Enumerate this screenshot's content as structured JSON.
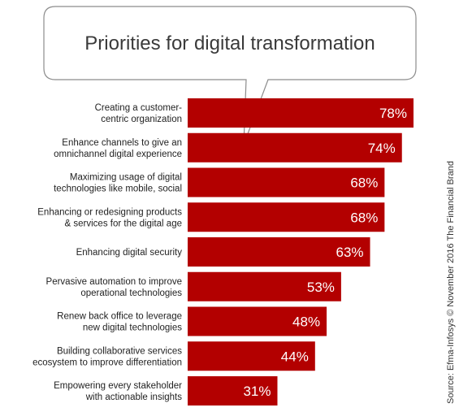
{
  "chart_data": {
    "type": "bar",
    "orientation": "horizontal",
    "title": "Priorities for digital transformation",
    "categories": [
      [
        "Creating a customer-",
        "centric organization"
      ],
      [
        "Enhance channels to give an",
        "omnichannel digital experience"
      ],
      [
        "Maximizing usage of digital",
        "technologies like mobile, social"
      ],
      [
        "Enhancing or redesigning products",
        "& services for the digital age"
      ],
      [
        "Enhancing digital security"
      ],
      [
        "Pervasive automation to improve",
        "operational technologies"
      ],
      [
        "Renew back office to leverage",
        "new digital technologies"
      ],
      [
        "Building collaborative services",
        "ecosystem to improve differentiation"
      ],
      [
        "Empowering every stakeholder",
        "with actionable insights"
      ]
    ],
    "values": [
      78,
      74,
      68,
      68,
      63,
      53,
      48,
      44,
      31
    ],
    "value_labels": [
      "78%",
      "74%",
      "68%",
      "68%",
      "63%",
      "53%",
      "48%",
      "44%",
      "31%"
    ],
    "unit": "%",
    "xlim": [
      0,
      100
    ],
    "grid": false,
    "legend": "none",
    "bar_color": "#b30000",
    "source": "Source: Efma-Infosys © November  2016 The Financial Brand"
  }
}
